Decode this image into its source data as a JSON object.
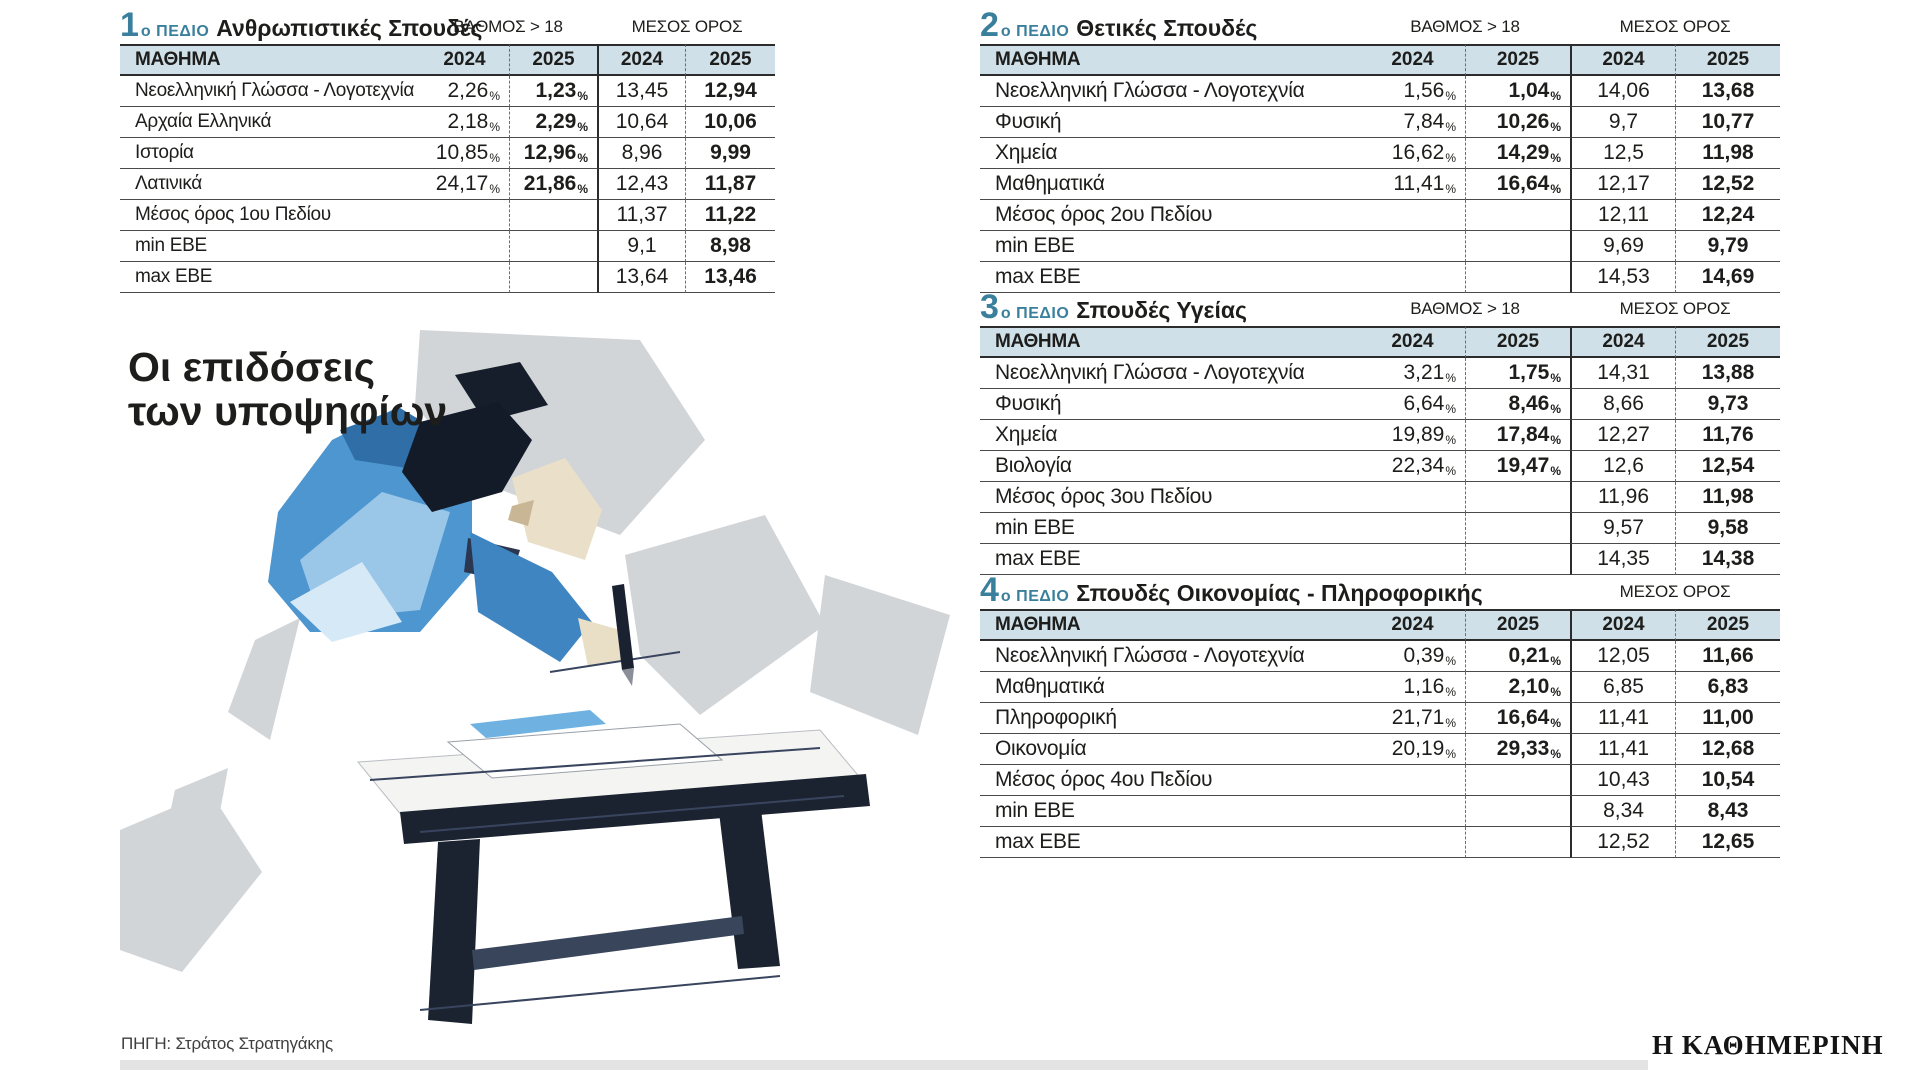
{
  "colors": {
    "accent_teal": "#3a7f9c",
    "table_header_bg": "#cfe0e8",
    "text_dark": "#1d1d1b",
    "footer_bar": "#e3e3e3",
    "illustration_blue": "#4e96cf",
    "illustration_navy": "#1b2331"
  },
  "page_title": {
    "line1": "Οι επιδόσεις",
    "line2": "των υποψηφίων"
  },
  "source": "ΠΗΓΗ: Στράτος Στρατηγάκης",
  "brand": "Η ΚΑΘΗΜΕΡΙΝΗ",
  "chart_data": [
    {
      "type": "table",
      "field_number": "1",
      "field_suffix": "ο ΠΕΔΙΟ",
      "title": "Ανθρωπιστικές Σπουδές",
      "grade_label": "ΒΑΘΜΟΣ > 18",
      "avg_label": "ΜΕΣΟΣ ΟΡΟΣ",
      "columns": [
        "ΜΑΘΗΜΑ",
        "2024",
        "2025",
        "2024",
        "2025"
      ],
      "rows": [
        {
          "subject": "Νεοελληνική Γλώσσα - Λογοτεχνία",
          "grade_2024": "2,26",
          "grade_2025": "1,23",
          "avg_2024": "13,45",
          "avg_2025": "12,94"
        },
        {
          "subject": "Αρχαία Ελληνικά",
          "grade_2024": "2,18",
          "grade_2025": "2,29",
          "avg_2024": "10,64",
          "avg_2025": "10,06"
        },
        {
          "subject": "Ιστορία",
          "grade_2024": "10,85",
          "grade_2025": "12,96",
          "avg_2024": "8,96",
          "avg_2025": "9,99"
        },
        {
          "subject": "Λατινικά",
          "grade_2024": "24,17",
          "grade_2025": "21,86",
          "avg_2024": "12,43",
          "avg_2025": "11,87"
        },
        {
          "subject": "Μέσος όρος 1ου Πεδίου",
          "grade_2024": "",
          "grade_2025": "",
          "avg_2024": "11,37",
          "avg_2025": "11,22"
        },
        {
          "subject": "min ΕΒΕ",
          "grade_2024": "",
          "grade_2025": "",
          "avg_2024": "9,1",
          "avg_2025": "8,98"
        },
        {
          "subject": "max ΕΒΕ",
          "grade_2024": "",
          "grade_2025": "",
          "avg_2024": "13,64",
          "avg_2025": "13,46"
        }
      ]
    },
    {
      "type": "table",
      "field_number": "2",
      "field_suffix": "ο ΠΕΔΙΟ",
      "title": "Θετικές Σπουδές",
      "grade_label": "ΒΑΘΜΟΣ > 18",
      "avg_label": "ΜΕΣΟΣ ΟΡΟΣ",
      "columns": [
        "ΜΑΘΗΜΑ",
        "2024",
        "2025",
        "2024",
        "2025"
      ],
      "rows": [
        {
          "subject": "Νεοελληνική Γλώσσα - Λογοτεχνία",
          "grade_2024": "1,56",
          "grade_2025": "1,04",
          "avg_2024": "14,06",
          "avg_2025": "13,68"
        },
        {
          "subject": "Φυσική",
          "grade_2024": "7,84",
          "grade_2025": "10,26",
          "avg_2024": "9,7",
          "avg_2025": "10,77"
        },
        {
          "subject": "Χημεία",
          "grade_2024": "16,62",
          "grade_2025": "14,29",
          "avg_2024": "12,5",
          "avg_2025": "11,98"
        },
        {
          "subject": "Μαθηματικά",
          "grade_2024": "11,41",
          "grade_2025": "16,64",
          "avg_2024": "12,17",
          "avg_2025": "12,52"
        },
        {
          "subject": "Μέσος όρος 2ου Πεδίου",
          "grade_2024": "",
          "grade_2025": "",
          "avg_2024": "12,11",
          "avg_2025": "12,24"
        },
        {
          "subject": "min ΕΒΕ",
          "grade_2024": "",
          "grade_2025": "",
          "avg_2024": "9,69",
          "avg_2025": "9,79"
        },
        {
          "subject": "max ΕΒΕ",
          "grade_2024": "",
          "grade_2025": "",
          "avg_2024": "14,53",
          "avg_2025": "14,69"
        }
      ]
    },
    {
      "type": "table",
      "field_number": "3",
      "field_suffix": "ο ΠΕΔΙΟ",
      "title": "Σπουδές Υγείας",
      "grade_label": "ΒΑΘΜΟΣ > 18",
      "avg_label": "ΜΕΣΟΣ ΟΡΟΣ",
      "columns": [
        "ΜΑΘΗΜΑ",
        "2024",
        "2025",
        "2024",
        "2025"
      ],
      "rows": [
        {
          "subject": "Νεοελληνική Γλώσσα - Λογοτεχνία",
          "grade_2024": "3,21",
          "grade_2025": "1,75",
          "avg_2024": "14,31",
          "avg_2025": "13,88"
        },
        {
          "subject": "Φυσική",
          "grade_2024": "6,64",
          "grade_2025": "8,46",
          "avg_2024": "8,66",
          "avg_2025": "9,73"
        },
        {
          "subject": "Χημεία",
          "grade_2024": "19,89",
          "grade_2025": "17,84",
          "avg_2024": "12,27",
          "avg_2025": "11,76"
        },
        {
          "subject": "Βιολογία",
          "grade_2024": "22,34",
          "grade_2025": "19,47",
          "avg_2024": "12,6",
          "avg_2025": "12,54"
        },
        {
          "subject": "Μέσος όρος 3ου Πεδίου",
          "grade_2024": "",
          "grade_2025": "",
          "avg_2024": "11,96",
          "avg_2025": "11,98"
        },
        {
          "subject": "min ΕΒΕ",
          "grade_2024": "",
          "grade_2025": "",
          "avg_2024": "9,57",
          "avg_2025": "9,58"
        },
        {
          "subject": "max ΕΒΕ",
          "grade_2024": "",
          "grade_2025": "",
          "avg_2024": "14,35",
          "avg_2025": "14,38"
        }
      ]
    },
    {
      "type": "table",
      "field_number": "4",
      "field_suffix": "ο ΠΕΔΙΟ",
      "title": "Σπουδές Οικονομίας - Πληροφορικής",
      "grade_label": "",
      "avg_label": "ΜΕΣΟΣ ΟΡΟΣ",
      "columns": [
        "ΜΑΘΗΜΑ",
        "2024",
        "2025",
        "2024",
        "2025"
      ],
      "rows": [
        {
          "subject": "Νεοελληνική Γλώσσα - Λογοτεχνία",
          "grade_2024": "0,39",
          "grade_2025": "0,21",
          "avg_2024": "12,05",
          "avg_2025": "11,66"
        },
        {
          "subject": "Μαθηματικά",
          "grade_2024": "1,16",
          "grade_2025": "2,10",
          "avg_2024": "6,85",
          "avg_2025": "6,83"
        },
        {
          "subject": "Πληροφορική",
          "grade_2024": "21,71",
          "grade_2025": "16,64",
          "avg_2024": "11,41",
          "avg_2025": "11,00"
        },
        {
          "subject": "Οικονομία",
          "grade_2024": "20,19",
          "grade_2025": "29,33",
          "avg_2024": "11,41",
          "avg_2025": "12,68"
        },
        {
          "subject": "Μέσος όρος 4ου Πεδίου",
          "grade_2024": "",
          "grade_2025": "",
          "avg_2024": "10,43",
          "avg_2025": "10,54"
        },
        {
          "subject": "min ΕΒΕ",
          "grade_2024": "",
          "grade_2025": "",
          "avg_2024": "8,34",
          "avg_2025": "8,43"
        },
        {
          "subject": "max ΕΒΕ",
          "grade_2024": "",
          "grade_2025": "",
          "avg_2024": "12,52",
          "avg_2025": "12,65"
        }
      ]
    }
  ]
}
